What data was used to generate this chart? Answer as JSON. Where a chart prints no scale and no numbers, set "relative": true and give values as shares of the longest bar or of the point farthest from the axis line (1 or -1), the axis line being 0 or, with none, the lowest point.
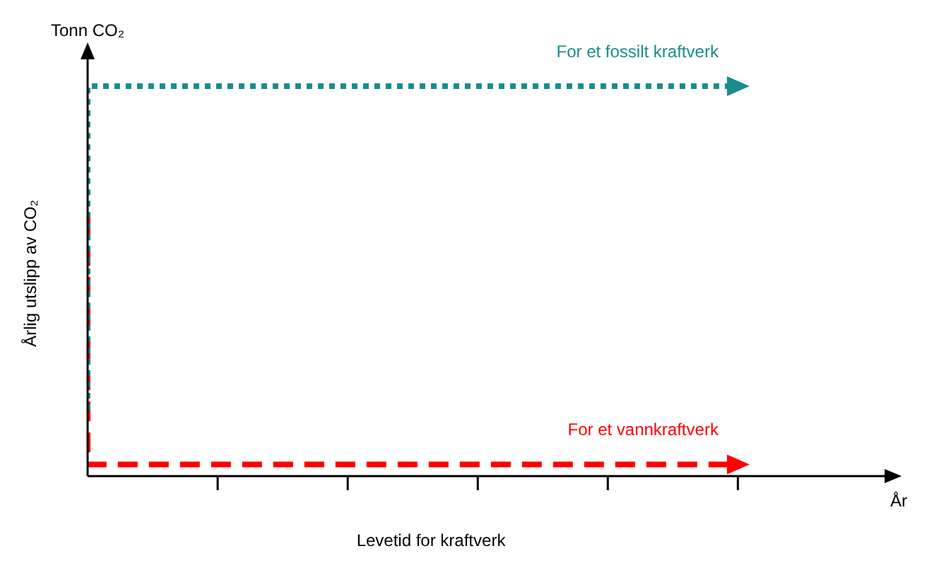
{
  "chart_data": {
    "type": "step",
    "relative": true,
    "xlabel": "Levetid for kraftverk",
    "ylabel": "Årlig utslipp av CO₂",
    "annotations": [
      "Tonn CO₂",
      "År"
    ],
    "categories": [
      null,
      null,
      null,
      null,
      null,
      null,
      null,
      null,
      null,
      null,
      null,
      null,
      null,
      null,
      null,
      null,
      null,
      null,
      null,
      null,
      null,
      null,
      null,
      null,
      null,
      null,
      null,
      null,
      null,
      null,
      null,
      null,
      null,
      null,
      null,
      null,
      null,
      null,
      null,
      null
    ],
    "legend": false,
    "marker": "none",
    "series": [
      {
        "name": "For et fossilt kraftverk",
        "color": "#1a8c8c",
        "line_style": "dotted",
        "values": [
          0.17,
          1,
          1,
          1,
          1,
          1,
          1,
          1,
          1,
          1,
          1,
          1,
          1,
          1,
          1,
          1,
          1,
          1,
          1,
          1,
          1,
          1,
          1,
          1,
          1,
          1,
          1,
          1,
          1,
          1,
          1,
          1,
          1,
          1,
          1,
          1,
          1,
          1,
          1,
          1
        ]
      },
      {
        "name": "For et vannkraftverk",
        "color": "#ff0000",
        "line_style": "dashed",
        "values": [
          0.67,
          0.03,
          0.03,
          0.03,
          0.03,
          0.03,
          0.03,
          0.03,
          0.03,
          0.03,
          0.03,
          0.03,
          0.03,
          0.03,
          0.03,
          0.03,
          0.03,
          0.03,
          0.03,
          0.03,
          0.03,
          0.03,
          0.03,
          0.03,
          0.03,
          0.03,
          0.03,
          0.03,
          0.03,
          0.03,
          0.03,
          0.03,
          0.03,
          0.03,
          0.03,
          0.03,
          0.03,
          0.03,
          0.03,
          0.03
        ]
      }
    ]
  }
}
